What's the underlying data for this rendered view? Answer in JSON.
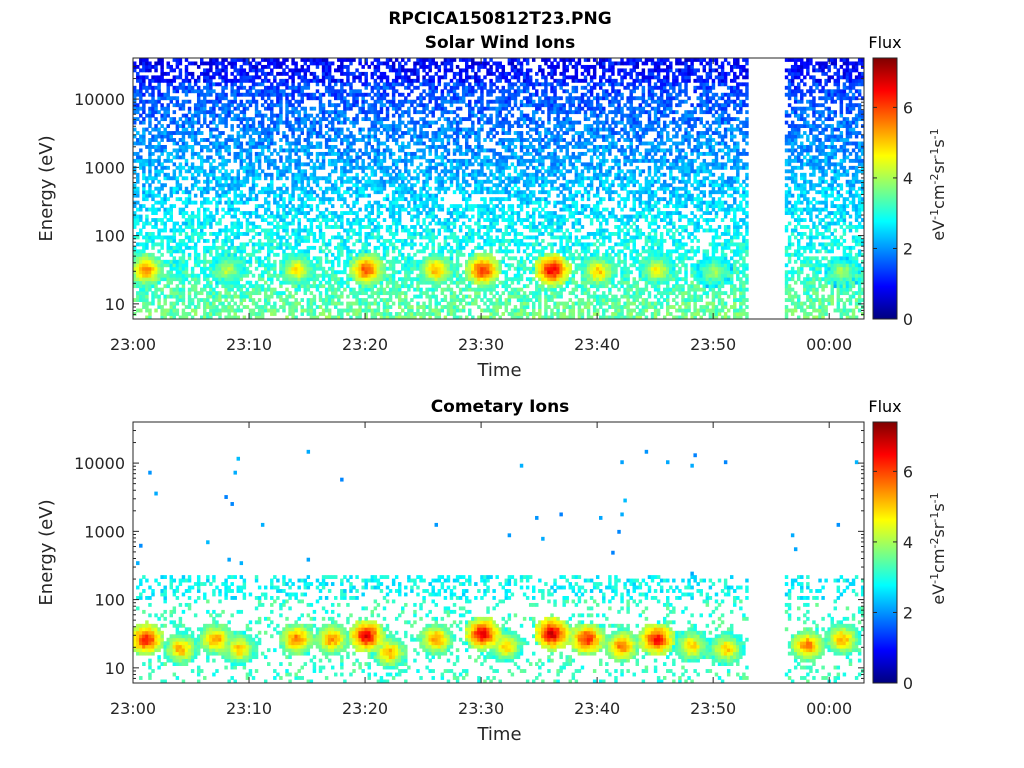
{
  "figure_title": "RPCICA150812T23.PNG",
  "colors": {
    "background": "#ffffff",
    "axis": "#262626",
    "colormap": "jet",
    "colormap_stops": [
      "#00007f",
      "#0000ff",
      "#007fff",
      "#00ffff",
      "#7fff7f",
      "#ffff00",
      "#ff7f00",
      "#ff0000",
      "#7f0000"
    ]
  },
  "chart_data": [
    {
      "type": "heatmap",
      "title": "Solar Wind Ions",
      "xlabel": "Time",
      "ylabel": "Energy (eV)",
      "x_scale": "time",
      "x_range": [
        "23:00",
        "00:03"
      ],
      "x_ticks": [
        "23:00",
        "23:10",
        "23:20",
        "23:30",
        "23:40",
        "23:50",
        "00:00"
      ],
      "y_scale": "log",
      "y_range": [
        6,
        40000
      ],
      "y_ticks": [
        "10",
        "100",
        "1000",
        "10000"
      ],
      "data_gap": [
        "23:53",
        "23:56"
      ],
      "colorbar": {
        "title": "Flux",
        "label": "eV-1cm-2sr-1s-1",
        "range": [
          0,
          7.4
        ],
        "ticks": [
          "0",
          "2",
          "4",
          "6"
        ]
      },
      "features": [
        {
          "time": "23:01",
          "energy_center": 30,
          "level": 5.5
        },
        {
          "time": "23:08",
          "energy_center": 30,
          "level": 4.2
        },
        {
          "time": "23:14",
          "energy_center": 30,
          "level": 4.8
        },
        {
          "time": "23:20",
          "energy_center": 30,
          "level": 5.9
        },
        {
          "time": "23:26",
          "energy_center": 30,
          "level": 5.2
        },
        {
          "time": "23:30",
          "energy_center": 30,
          "level": 6.2
        },
        {
          "time": "23:36",
          "energy_center": 30,
          "level": 6.6
        },
        {
          "time": "23:40",
          "energy_center": 28,
          "level": 5.0
        },
        {
          "time": "23:45",
          "energy_center": 30,
          "level": 4.6
        },
        {
          "time": "23:50",
          "energy_center": 28,
          "level": 4.0
        },
        {
          "time": "00:01",
          "energy_center": 28,
          "level": 4.0
        }
      ]
    },
    {
      "type": "heatmap",
      "title": "Cometary Ions",
      "xlabel": "Time",
      "ylabel": "Energy (eV)",
      "x_scale": "time",
      "x_range": [
        "23:00",
        "00:03"
      ],
      "x_ticks": [
        "23:00",
        "23:10",
        "23:20",
        "23:30",
        "23:40",
        "23:50",
        "00:00"
      ],
      "y_scale": "log",
      "y_range": [
        6,
        40000
      ],
      "y_ticks": [
        "10",
        "100",
        "1000",
        "10000"
      ],
      "data_gap": [
        "23:53",
        "23:56"
      ],
      "colorbar": {
        "title": "Flux",
        "label": "eV-1cm-2sr-1s-1",
        "range": [
          0,
          7.4
        ],
        "ticks": [
          "0",
          "2",
          "4",
          "6"
        ]
      },
      "features": [
        {
          "time": "23:01",
          "energy_center": 25,
          "level": 6.3
        },
        {
          "time": "23:04",
          "energy_center": 18,
          "level": 5.2
        },
        {
          "time": "23:07",
          "energy_center": 25,
          "level": 5.4
        },
        {
          "time": "23:09",
          "energy_center": 18,
          "level": 5.0
        },
        {
          "time": "23:14",
          "energy_center": 25,
          "level": 5.6
        },
        {
          "time": "23:17",
          "energy_center": 25,
          "level": 5.4
        },
        {
          "time": "23:20",
          "energy_center": 28,
          "level": 6.6
        },
        {
          "time": "23:22",
          "energy_center": 16,
          "level": 5.2
        },
        {
          "time": "23:26",
          "energy_center": 25,
          "level": 5.4
        },
        {
          "time": "23:30",
          "energy_center": 30,
          "level": 6.6
        },
        {
          "time": "23:32",
          "energy_center": 20,
          "level": 5.0
        },
        {
          "time": "23:36",
          "energy_center": 30,
          "level": 6.8
        },
        {
          "time": "23:39",
          "energy_center": 25,
          "level": 6.2
        },
        {
          "time": "23:42",
          "energy_center": 20,
          "level": 5.6
        },
        {
          "time": "23:45",
          "energy_center": 25,
          "level": 6.4
        },
        {
          "time": "23:48",
          "energy_center": 20,
          "level": 5.0
        },
        {
          "time": "23:51",
          "energy_center": 18,
          "level": 5.0
        },
        {
          "time": "23:58",
          "energy_center": 20,
          "level": 5.6
        },
        {
          "time": "00:01",
          "energy_center": 25,
          "level": 5.2
        }
      ]
    }
  ]
}
